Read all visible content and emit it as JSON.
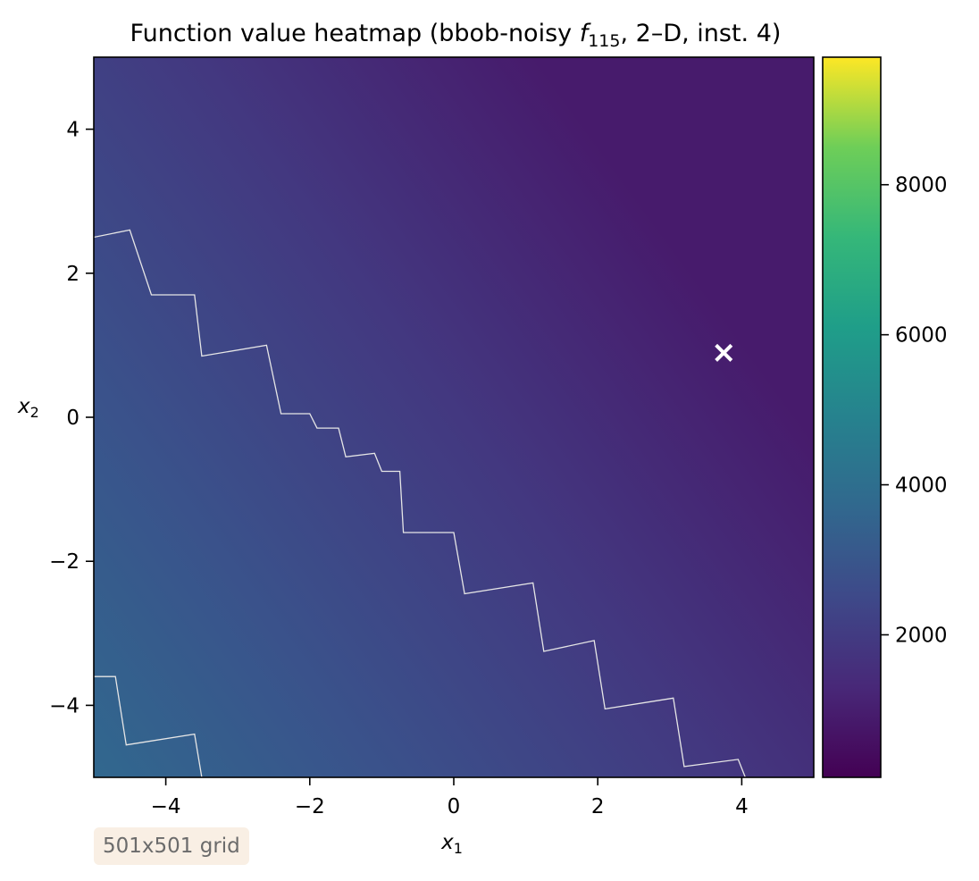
{
  "chart_data": {
    "type": "heatmap",
    "title_plain": "Function value heatmap (bbob-noisy ",
    "title_sym": "f",
    "title_sub": "115",
    "title_rest": ", 2–D, inst. 4)",
    "xlabel": "x",
    "xlabel_sub": "1",
    "ylabel": "x",
    "ylabel_sub": "2",
    "xlim": [
      -5,
      5
    ],
    "ylim": [
      -5,
      5
    ],
    "xticks": [
      -4,
      -2,
      0,
      2,
      4
    ],
    "yticks": [
      -4,
      -2,
      0,
      2,
      4
    ],
    "xtick_labels": [
      "−4",
      "−2",
      "0",
      "2",
      "4"
    ],
    "ytick_labels": [
      "−4",
      "−2",
      "0",
      "2",
      "4"
    ],
    "colorbar": {
      "cmap": "viridis",
      "range": [
        100,
        9700
      ],
      "ticks": [
        2000,
        4000,
        6000,
        8000
      ],
      "tick_labels": [
        "2000",
        "4000",
        "6000",
        "8000"
      ]
    },
    "field": {
      "min_value": 900,
      "max_value": 3700,
      "min_location": [
        3.8,
        1.4
      ],
      "max_location": [
        -5,
        -5
      ]
    },
    "optimum_marker": {
      "x": 3.75,
      "y": 0.9,
      "symbol": "×",
      "color": "#ffffff"
    },
    "contour_staircase": [
      [
        [
          -5,
          2.5
        ],
        [
          -4.5,
          2.6
        ],
        [
          -4.2,
          1.7
        ],
        [
          -3.6,
          1.7
        ],
        [
          -3.5,
          0.85
        ],
        [
          -2.6,
          1.0
        ],
        [
          -2.4,
          0.05
        ],
        [
          -2.0,
          0.05
        ],
        [
          -1.9,
          -0.15
        ],
        [
          -1.6,
          -0.15
        ],
        [
          -1.5,
          -0.55
        ],
        [
          -1.1,
          -0.5
        ],
        [
          -1.0,
          -0.75
        ],
        [
          -0.75,
          -0.75
        ],
        [
          -0.7,
          -1.6
        ],
        [
          0.0,
          -1.6
        ],
        [
          0.15,
          -2.45
        ],
        [
          1.1,
          -2.3
        ],
        [
          1.25,
          -3.25
        ],
        [
          1.95,
          -3.1
        ],
        [
          2.1,
          -4.05
        ],
        [
          3.05,
          -3.9
        ],
        [
          3.2,
          -4.85
        ],
        [
          3.95,
          -4.75
        ],
        [
          4.05,
          -5
        ]
      ],
      [
        [
          -5,
          -3.6
        ],
        [
          -4.7,
          -3.6
        ],
        [
          -4.55,
          -4.55
        ],
        [
          -3.6,
          -4.4
        ],
        [
          -3.5,
          -5
        ]
      ]
    ],
    "grid_note": "501x501 grid"
  }
}
